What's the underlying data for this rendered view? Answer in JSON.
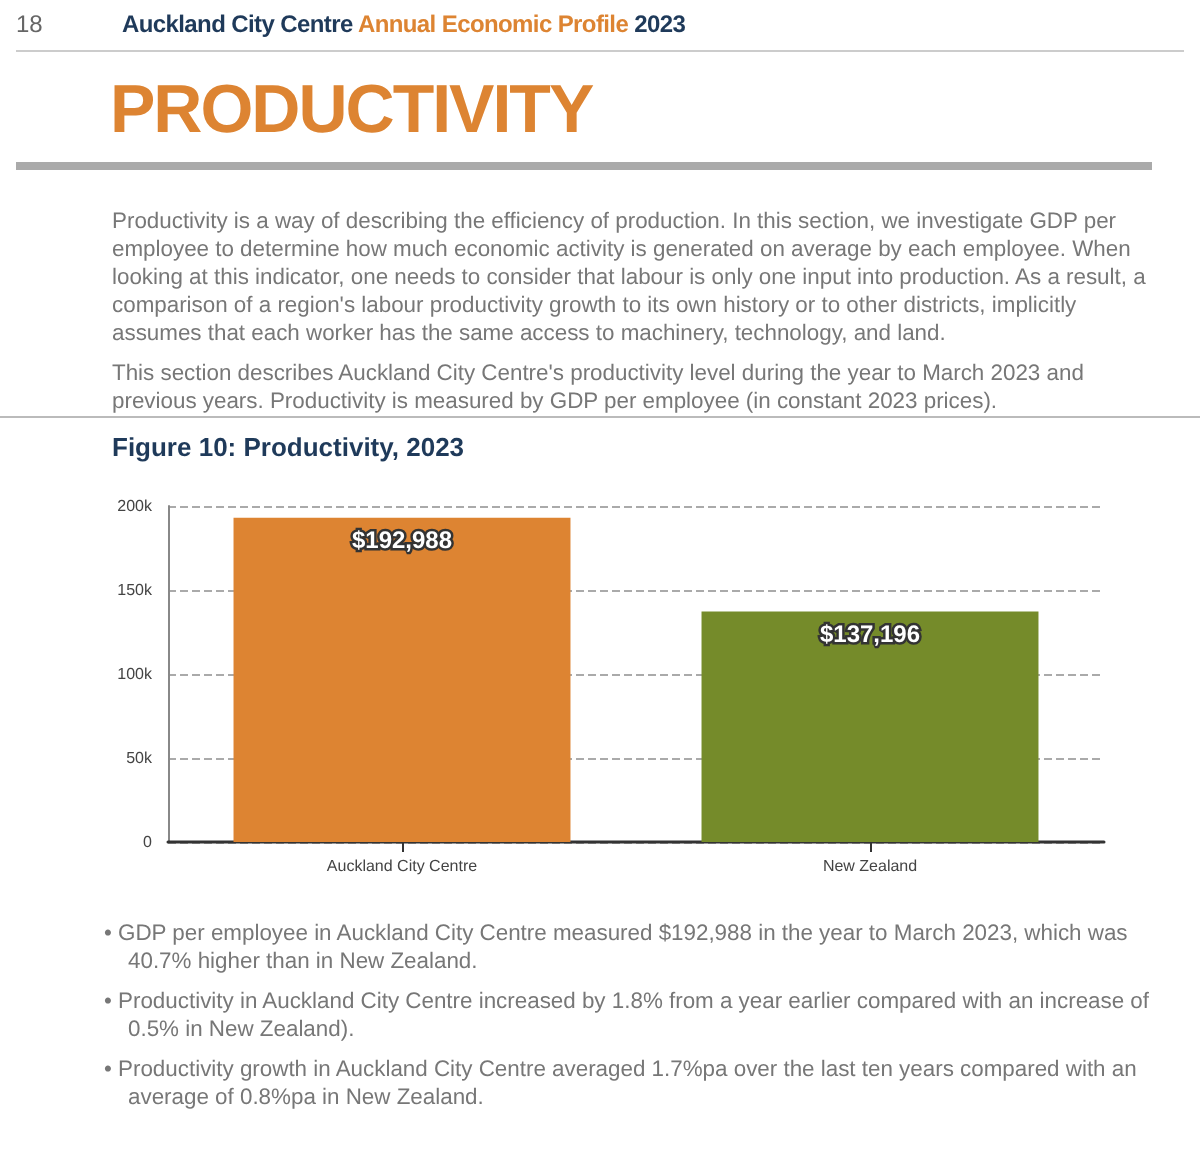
{
  "chart_data": {
    "type": "bar",
    "title": "Figure 10: Productivity, 2023",
    "categories": [
      "Auckland City Centre",
      "New Zealand"
    ],
    "values": [
      192988,
      137196
    ],
    "colors": [
      "#dd8432",
      "#758b2a"
    ],
    "value_labels": [
      "$192,988",
      "$137,196"
    ],
    "ylim": [
      0,
      200000
    ],
    "yticks": [
      {
        "value": 0,
        "label": "0"
      },
      {
        "value": 50000,
        "label": "50k"
      },
      {
        "value": 100000,
        "label": "100k"
      },
      {
        "value": 150000,
        "label": "150k"
      },
      {
        "value": 200000,
        "label": "200k"
      }
    ],
    "grid": "y",
    "annotations": [
      "18",
      "Auckland City Centre",
      "Annual Economic Profile",
      "2023",
      "PRODUCTIVITY",
      "Productivity is a way of describing the efficiency of production. In this section, we investigate GDP per employee to determine how much economic activity is generated on average by each employee. When looking at this indicator, one needs to consider that labour is only one input into production. As a result, a comparison of a region's labour productivity growth to its own history or to other districts, implicitly assumes that each worker has the same access to machinery, technology, and land.",
      "This section describes Auckland City Centre's productivity level during the year to March 2023 and previous years. Productivity is measured by GDP per employee (in constant 2023 prices).",
      "• GDP per employee in Auckland City Centre measured $192,988 in the year to March 2023, which was 40.7% higher than in New Zealand.",
      "• Productivity in Auckland City Centre increased by 1.8% from a year earlier compared with an increase of 0.5% in New Zealand).",
      "• Productivity growth in Auckland City Centre averaged 1.7%pa over the last ten years compared with an average of 0.8%pa in New Zealand."
    ]
  }
}
